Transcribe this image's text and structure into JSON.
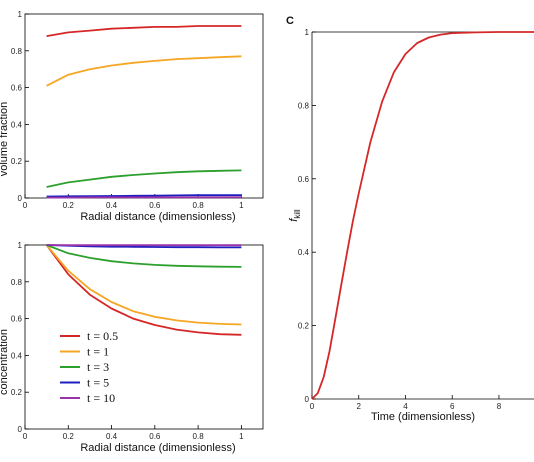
{
  "chart_data": [
    {
      "type": "line",
      "panel_label": "",
      "title": "",
      "xlabel": "Radial distance (dimensionless)",
      "ylabel": "volume fraction",
      "xlim": [
        0,
        1.1
      ],
      "ylim": [
        0,
        1
      ],
      "xticks": [
        "0",
        "0.2",
        "0.4",
        "0.6",
        "0.8",
        "1"
      ],
      "yticks": [
        "0",
        "0.2",
        "0.4",
        "0.6",
        "0.8",
        "1"
      ],
      "x": [
        0.1,
        0.2,
        0.3,
        0.4,
        0.5,
        0.6,
        0.7,
        0.8,
        0.9,
        1.0
      ],
      "series": [
        {
          "name": "t = 0.5",
          "color": "#d62728",
          "values": [
            0.88,
            0.9,
            0.91,
            0.92,
            0.925,
            0.93,
            0.93,
            0.935,
            0.935,
            0.935
          ]
        },
        {
          "name": "t = 1",
          "color": "#f5a623",
          "values": [
            0.61,
            0.67,
            0.7,
            0.72,
            0.735,
            0.745,
            0.755,
            0.76,
            0.765,
            0.77
          ]
        },
        {
          "name": "t = 3",
          "color": "#2ca02c",
          "values": [
            0.06,
            0.085,
            0.1,
            0.115,
            0.125,
            0.133,
            0.14,
            0.145,
            0.148,
            0.15
          ]
        },
        {
          "name": "t = 5",
          "color": "#1f1fbf",
          "values": [
            0.008,
            0.009,
            0.01,
            0.011,
            0.012,
            0.013,
            0.014,
            0.015,
            0.015,
            0.016
          ]
        },
        {
          "name": "t = 10",
          "color": "#9933aa",
          "values": [
            0.002,
            0.002,
            0.003,
            0.003,
            0.003,
            0.004,
            0.004,
            0.004,
            0.004,
            0.005
          ]
        }
      ]
    },
    {
      "type": "line",
      "panel_label": "",
      "title": "",
      "xlabel": "Radial distance (dimensionless)",
      "ylabel": "concentration",
      "xlim": [
        0,
        1.1
      ],
      "ylim": [
        0,
        1
      ],
      "xticks": [
        "0",
        "0.2",
        "0.4",
        "0.6",
        "0.8",
        "1"
      ],
      "yticks": [
        "0",
        "0.2",
        "0.4",
        "0.6",
        "0.8",
        "1"
      ],
      "x": [
        0.1,
        0.2,
        0.3,
        0.4,
        0.5,
        0.6,
        0.7,
        0.8,
        0.9,
        1.0
      ],
      "series": [
        {
          "name": "t = 0.5",
          "color": "#d62728",
          "values": [
            1.0,
            0.84,
            0.73,
            0.655,
            0.6,
            0.565,
            0.54,
            0.525,
            0.515,
            0.512
          ]
        },
        {
          "name": "t = 1",
          "color": "#f5a623",
          "values": [
            1.0,
            0.86,
            0.76,
            0.69,
            0.64,
            0.61,
            0.59,
            0.578,
            0.571,
            0.568
          ]
        },
        {
          "name": "t = 3",
          "color": "#2ca02c",
          "values": [
            1.0,
            0.955,
            0.93,
            0.912,
            0.9,
            0.892,
            0.887,
            0.884,
            0.882,
            0.881
          ]
        },
        {
          "name": "t = 5",
          "color": "#1f1fbf",
          "values": [
            1.0,
            0.996,
            0.993,
            0.991,
            0.99,
            0.989,
            0.988,
            0.988,
            0.987,
            0.987
          ]
        },
        {
          "name": "t = 10",
          "color": "#9933aa",
          "values": [
            1.0,
            0.999,
            0.999,
            0.999,
            0.999,
            0.999,
            0.999,
            0.999,
            0.999,
            0.999
          ]
        }
      ],
      "legend": {
        "placement": "lower-left",
        "entries": [
          {
            "label": "t = 0.5",
            "color": "#d62728"
          },
          {
            "label": "t = 1",
            "color": "#f5a623"
          },
          {
            "label": "t = 3",
            "color": "#2ca02c"
          },
          {
            "label": "t = 5",
            "color": "#1f1fbf"
          },
          {
            "label": "t = 10",
            "color": "#9933aa"
          }
        ]
      }
    },
    {
      "type": "line",
      "panel_label": "C",
      "title": "",
      "xlabel": "Time (dimensionless)",
      "ylabel_main": "f",
      "ylabel_sub": "kill",
      "xlim": [
        0,
        9.5
      ],
      "ylim": [
        0,
        1
      ],
      "xticks": [
        "0",
        "2",
        "4",
        "6",
        "8"
      ],
      "yticks": [
        "0",
        "0.2",
        "0.4",
        "0.6",
        "0.8",
        "1"
      ],
      "x": [
        0,
        0.25,
        0.5,
        0.75,
        1.0,
        1.25,
        1.5,
        1.75,
        2.0,
        2.5,
        3.0,
        3.5,
        4.0,
        4.5,
        5.0,
        5.5,
        6.0,
        7.0,
        8.0,
        9.0,
        9.5
      ],
      "series": [
        {
          "name": "",
          "color": "#d62728",
          "values": [
            0,
            0.016,
            0.06,
            0.13,
            0.22,
            0.31,
            0.4,
            0.485,
            0.56,
            0.7,
            0.81,
            0.89,
            0.94,
            0.97,
            0.985,
            0.993,
            0.997,
            0.999,
            1.0,
            1.0,
            1.0
          ]
        }
      ]
    }
  ]
}
